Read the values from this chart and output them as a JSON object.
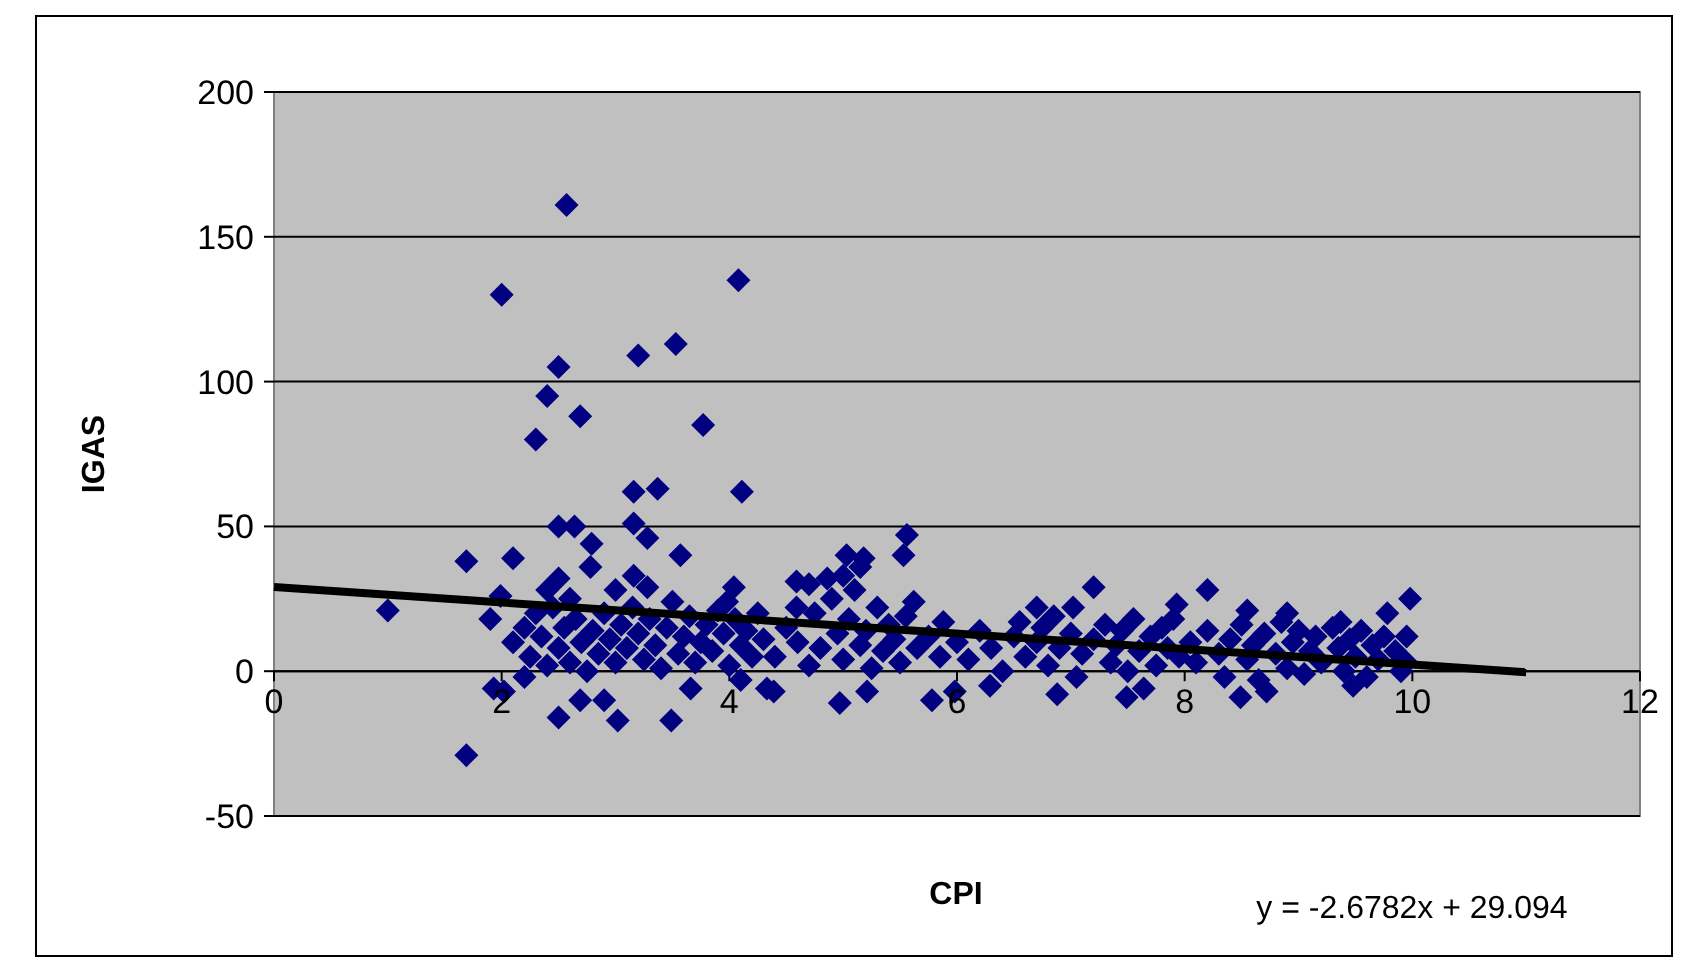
{
  "chart_data": {
    "type": "scatter",
    "xlabel": "CPI",
    "ylabel": "IGAS",
    "annotations": [
      "y = -2.6782x + 29.094"
    ],
    "xlim": [
      0,
      12
    ],
    "xticks": [
      0,
      2,
      4,
      6,
      8,
      10,
      12
    ],
    "ylim": [
      -50,
      200
    ],
    "yticks": [
      -50,
      0,
      50,
      100,
      150,
      200
    ],
    "grid": "y",
    "series": [
      {
        "marker": "diamond",
        "color": "#000080",
        "x": [
          2.57,
          2.0,
          4.08,
          3.53,
          3.2,
          2.5,
          2.4,
          2.69,
          2.3,
          3.77,
          3.16,
          3.37,
          4.11,
          2.5,
          2.64,
          3.16,
          3.28,
          2.79,
          3.57,
          1.0,
          1.69,
          2.1,
          1.69,
          1.99,
          1.9,
          1.93,
          2.02,
          2.5,
          2.69,
          2.9,
          3.02,
          3.49,
          2.78,
          2.5,
          3.16,
          3.28,
          4.04,
          3.98,
          4.33,
          4.1,
          3.66,
          5.56,
          5.53,
          5.03,
          5.18,
          5.15,
          4.86,
          4.59,
          4.59,
          5.62,
          5.88,
          7.2,
          7.02,
          6.7,
          7.93,
          4.39,
          4.97,
          5.21,
          5.78,
          5.98,
          6.29,
          6.88,
          7.49,
          7.64,
          8.2,
          9.98,
          9.78,
          8.55,
          8.9,
          9.37,
          9.95,
          9.95,
          8.49,
          8.72,
          9.48,
          2.1,
          2.2,
          2.25,
          2.3,
          2.35,
          2.4,
          2.45,
          2.5,
          2.55,
          2.6,
          2.65,
          2.7,
          2.75,
          2.8,
          2.85,
          2.9,
          2.95,
          3.0,
          3.05,
          3.1,
          3.15,
          3.2,
          3.25,
          3.3,
          3.35,
          3.4,
          3.45,
          3.5,
          3.55,
          3.6,
          3.65,
          3.7,
          3.75,
          3.8,
          3.85,
          3.9,
          3.95,
          4.0,
          4.05,
          4.1,
          4.15,
          4.2,
          4.25,
          4.3,
          2.2,
          2.6,
          3.0,
          2.4,
          4.4,
          4.5,
          4.6,
          4.7,
          4.75,
          4.8,
          4.9,
          4.95,
          5.0,
          5.05,
          5.1,
          5.15,
          5.2,
          5.25,
          5.3,
          5.35,
          5.4,
          5.45,
          5.5,
          5.55,
          5.65,
          5.75,
          5.85,
          4.7,
          5.0,
          6.0,
          6.1,
          6.2,
          6.3,
          6.4,
          6.5,
          6.55,
          6.6,
          6.7,
          6.75,
          6.8,
          6.85,
          6.9,
          7.0,
          7.05,
          7.1,
          7.2,
          7.3,
          7.35,
          7.4,
          7.45,
          7.5,
          7.55,
          7.6,
          7.7,
          7.75,
          7.8,
          7.85,
          7.95,
          7.9,
          8.05,
          8.1,
          8.2,
          8.3,
          8.35,
          8.4,
          8.5,
          8.55,
          8.6,
          8.65,
          8.7,
          8.8,
          8.85,
          8.9,
          8.95,
          9.0,
          9.05,
          9.1,
          9.15,
          9.2,
          9.3,
          9.35,
          9.4,
          9.45,
          9.5,
          9.55,
          9.6,
          9.65,
          9.7,
          9.75,
          9.85,
          9.9
        ],
        "values": [
          161,
          130,
          135,
          113,
          109,
          105,
          95,
          88,
          80,
          85,
          62,
          63,
          62,
          50,
          50,
          51,
          46,
          44,
          40,
          21,
          38,
          39,
          -29,
          26,
          18,
          -6,
          -7,
          -16,
          -10,
          -10,
          -17,
          -17,
          36,
          32,
          33,
          29,
          29,
          24,
          -6,
          -3,
          -6,
          47,
          40,
          40,
          39,
          36,
          32,
          31,
          22,
          24,
          17,
          29,
          22,
          22,
          23,
          -7,
          -11,
          -7,
          -10,
          -7,
          -5,
          -8,
          -9,
          -6,
          28,
          25,
          20,
          21,
          20,
          17,
          12,
          3,
          -9,
          -7,
          -5,
          10,
          15,
          5,
          20,
          12,
          2,
          22,
          8,
          15,
          3,
          18,
          10,
          0,
          14,
          6,
          20,
          11,
          3,
          16,
          8,
          22,
          13,
          4,
          18,
          9,
          1,
          15,
          24,
          6,
          12,
          19,
          3,
          10,
          16,
          7,
          21,
          13,
          2,
          18,
          9,
          14,
          5,
          20,
          11,
          -2,
          25,
          28,
          28,
          5,
          15,
          10,
          2,
          20,
          8,
          25,
          13,
          4,
          18,
          28,
          9,
          14,
          1,
          22,
          7,
          16,
          11,
          3,
          19,
          8,
          12,
          5,
          30,
          33,
          10,
          4,
          14,
          8,
          0,
          12,
          17,
          5,
          10,
          15,
          2,
          19,
          8,
          13,
          -2,
          6,
          11,
          16,
          3,
          9,
          14,
          0,
          18,
          7,
          12,
          2,
          15,
          8,
          5,
          18,
          10,
          3,
          14,
          6,
          -2,
          11,
          16,
          4,
          9,
          -3,
          13,
          6,
          17,
          1,
          10,
          14,
          -1,
          7,
          12,
          3,
          15,
          8,
          0,
          11,
          5,
          14,
          -2,
          9,
          4,
          12,
          7,
          0
        ]
      },
      {
        "type": "line",
        "color": "#000000",
        "x": [
          0,
          11
        ],
        "values": [
          29.1,
          -0.4
        ]
      }
    ]
  }
}
